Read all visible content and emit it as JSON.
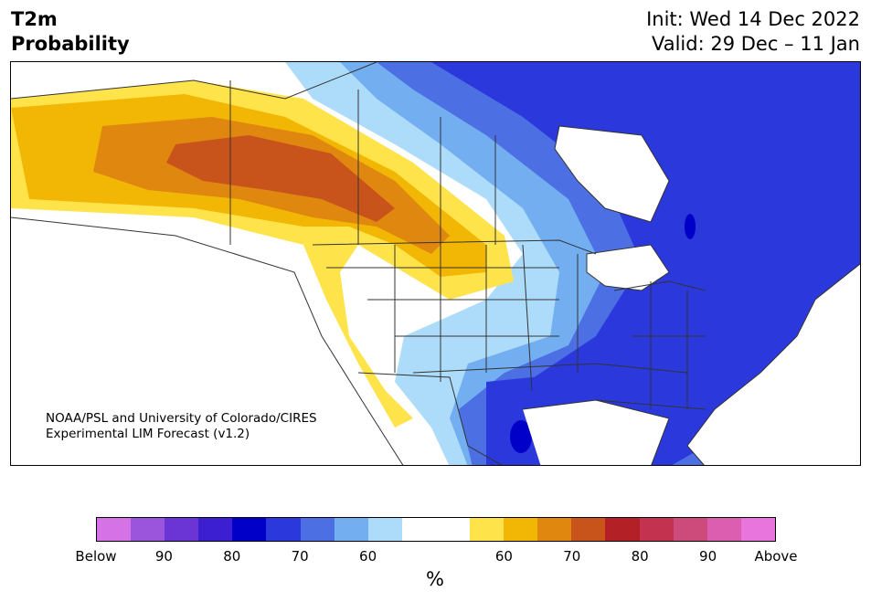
{
  "title": {
    "left_line1": "T2m",
    "left_line2": "Probability",
    "right_line1": "Init: Wed 14 Dec 2022",
    "right_line2": "Valid: 29 Dec – 11 Jan"
  },
  "credit": {
    "line1": "NOAA/PSL and University of Colorado/CIRES",
    "line2": "Experimental LIM Forecast (v1.2)"
  },
  "colorbar": {
    "colors": [
      "#d472e6",
      "#9b55dc",
      "#6b35d6",
      "#3b1fd1",
      "#0000c8",
      "#2a38dc",
      "#4c6fe4",
      "#72aef0",
      "#addcfb",
      "#ffffff",
      "#ffffff",
      "#ffe34a",
      "#f2b705",
      "#e0870f",
      "#c8541b",
      "#b32025",
      "#c33350",
      "#cc4b7b",
      "#db5eb0",
      "#e875de"
    ],
    "labels": [
      "Below",
      "90",
      "80",
      "70",
      "60",
      "60",
      "70",
      "80",
      "90",
      "Above"
    ],
    "unit": "%"
  },
  "map": {
    "colors": {
      "blue_light": "#addcfb",
      "blue_mid": "#72aef0",
      "blue": "#4c6fe4",
      "blue_dark": "#2a38dc",
      "blue_deep": "#0000c8",
      "yellow": "#ffe34a",
      "gold": "#f2b705",
      "orange": "#e0870f",
      "rust": "#c8541b",
      "outline": "#333333"
    }
  }
}
